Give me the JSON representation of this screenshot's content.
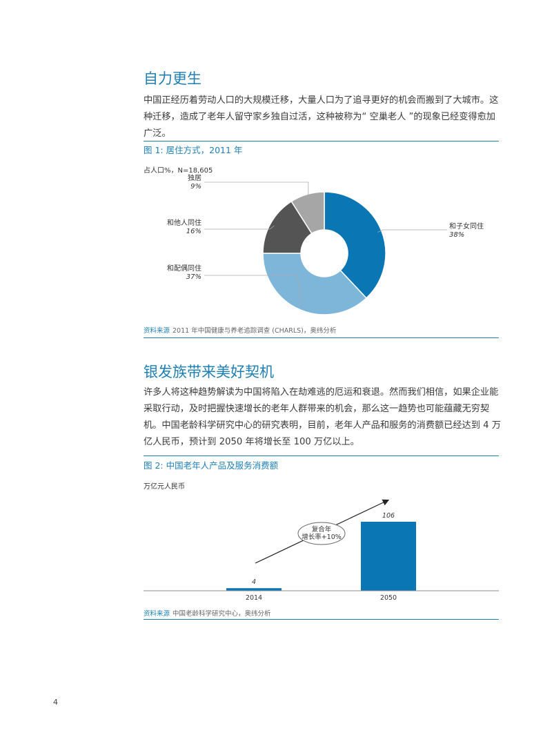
{
  "section1": {
    "heading": "自力更生",
    "paragraph": "中国正经历着劳动人口的大规模迁移，大量人口为了追寻更好的机会而搬到了大城市。这种迁移，造成了老年人留守家乡独自过活，这种被称为“ 空巢老人 ”的现象已经变得愈加广泛。"
  },
  "figure1": {
    "title": "图 1: 居住方式，2011 年",
    "unit_note": "占人口%，N=18,605",
    "source_label": "资料来源",
    "source_text": "2011 年中国健康与养老追踪调查 (CHARLS)，奥纬分析"
  },
  "section2": {
    "heading": "银发族带来美好契机",
    "paragraph": "许多人将这种趋势解读为中国将陷入在劫难逃的厄运和衰退。然而我们相信，如果企业能采取行动，及时把握快速增长的老年人群带来的机会，那么这一趋势也可能蕴藏无穷契机。中国老龄科学研究中心的研究表明，目前，老年人产品和服务的消费额已经达到 4 万亿人民币，预计到 2050 年将增长至 100 万亿以上。"
  },
  "figure2": {
    "title": "图 2: 中国老年人产品及服务消费额",
    "unit_note": "万亿元人民币",
    "cagr_line1": "复合年",
    "cagr_line2": "增长率+10%",
    "source_label": "资料来源",
    "source_text": "中国老龄科学研究中心，奥纬分析"
  },
  "page_number": "4",
  "colors": {
    "accent": "#1d7fb3",
    "bar": "#0b76b4",
    "pie_children": "#0b76b4",
    "pie_spouse": "#7db6d8",
    "pie_others": "#545454",
    "pie_alone": "#a6a6a6"
  },
  "chart_data": [
    {
      "type": "pie",
      "title": "图 1: 居住方式，2011 年",
      "note": "占人口%，N=18,605",
      "slices": [
        {
          "label": "和子女同住",
          "value": 38,
          "display": "38%"
        },
        {
          "label": "和配偶同住",
          "value": 37,
          "display": "37%"
        },
        {
          "label": "和他人同住",
          "value": 16,
          "display": "16%"
        },
        {
          "label": "独居",
          "value": 9,
          "display": "9%"
        }
      ]
    },
    {
      "type": "bar",
      "title": "图 2: 中国老年人产品及服务消费额",
      "ylabel": "万亿元人民币",
      "categories": [
        "2014",
        "2050"
      ],
      "values": [
        4,
        106
      ],
      "value_labels": [
        "4",
        "106"
      ]
    }
  ]
}
